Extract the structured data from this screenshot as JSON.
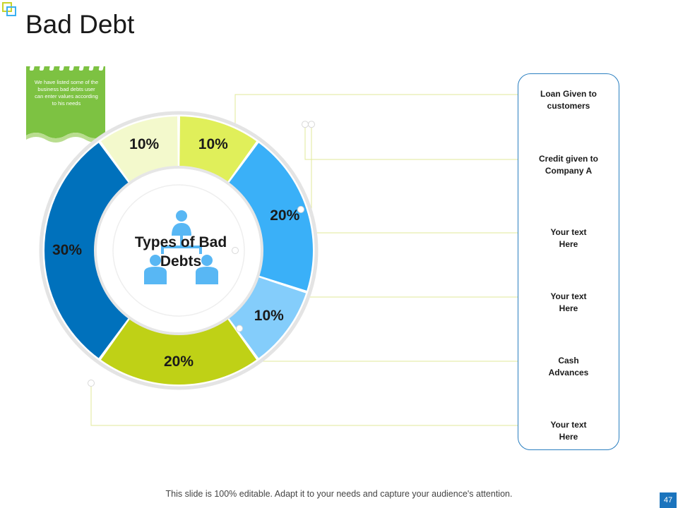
{
  "slide": {
    "title": "Bad Debt",
    "note": "We have listed some of the business bad debts user can enter values according to his needs",
    "footer": "This slide is 100% editable. Adapt it to your needs and capture your audience's attention.",
    "page_number": "47"
  },
  "colors": {
    "dark_blue": "#0071bc",
    "light_green": "#f3f9cc",
    "lime": "#e0ef5a",
    "sky_blue": "#3ab0f8",
    "pale_blue": "#84cdfb",
    "olive_green": "#bfd116",
    "note_green": "#7dc242",
    "connector": "#e2e89a",
    "panel_border": "#2a7fc0"
  },
  "icons": [
    "people-network-icon"
  ],
  "chart_data": {
    "type": "pie",
    "variant": "donut",
    "title": "Types of Bad Debts",
    "slices": [
      {
        "label": "30%",
        "value": 30,
        "category": "Loan Given to customers",
        "color": "#0071bc"
      },
      {
        "label": "10%",
        "value": 10,
        "category": "Credit given to Company A",
        "color": "#f3f9cc"
      },
      {
        "label": "10%",
        "value": 10,
        "category": "Your text Here",
        "color": "#e0ef5a"
      },
      {
        "label": "20%",
        "value": 20,
        "category": "Cash Advances",
        "color": "#3ab0f8"
      },
      {
        "label": "10%",
        "value": 10,
        "category": "Your text Here",
        "color": "#84cdfb"
      },
      {
        "label": "20%",
        "value": 20,
        "category": "Your text Here",
        "color": "#bfd116"
      }
    ],
    "legend_placement": "right"
  },
  "legend_items": [
    {
      "line1": "Loan Given to",
      "line2": "customers"
    },
    {
      "line1": "Credit given to",
      "line2": "Company A"
    },
    {
      "line1": "Your text",
      "line2": "Here"
    },
    {
      "line1": "Your text",
      "line2": "Here"
    },
    {
      "line1": "Cash",
      "line2": "Advances"
    },
    {
      "line1": "Your text",
      "line2": "Here"
    }
  ]
}
